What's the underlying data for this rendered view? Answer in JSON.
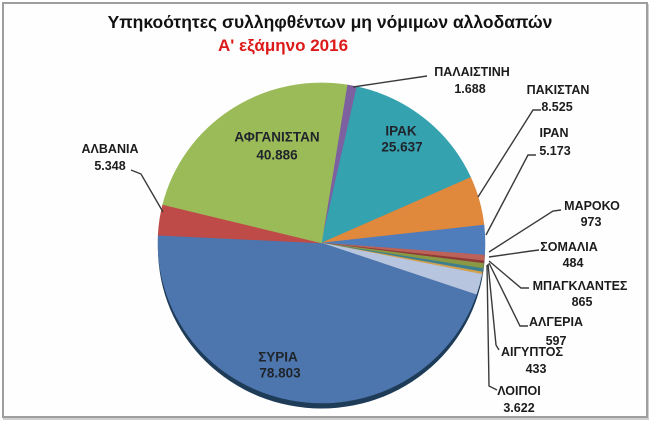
{
  "header": {
    "title": "Υπηκοότητες συλληφθέντων μη νόμιμων αλλοδαπών",
    "subtitle": "Α' εξάμηνο 2016",
    "subtitle_color": "#dd1a1a"
  },
  "chart_data": {
    "type": "pie",
    "title": "Υπηκοότητες συλληφθέντων μη νόμιμων αλλοδαπών",
    "subtitle": "Α' εξάμηνο 2016",
    "direction": "clockwise",
    "start_angle_deg": 9,
    "legend_position": "none",
    "labels": "outside-with-leader-lines; large slices labeled inside",
    "slices": [
      {
        "id": "palestine",
        "label": "ΠΑΛΑΙΣΤΙΝΗ",
        "value": 1688,
        "display": "1.688",
        "color": "#7d60a0"
      },
      {
        "id": "iraq",
        "label": "ΙΡΑΚ",
        "value": 25637,
        "display": "25.637",
        "color": "#35a2b0"
      },
      {
        "id": "pakistan",
        "label": "ΠΑΚΙΣΤΑΝ",
        "value": 8525,
        "display": "8.525",
        "color": "#e0883c"
      },
      {
        "id": "iran",
        "label": "ΙΡΑΝ",
        "value": 5173,
        "display": "5.173",
        "color": "#4f7cbb"
      },
      {
        "id": "morocco",
        "label": "ΜΑΡΟΚΟ",
        "value": 973,
        "display": "973",
        "color": "#bc6258"
      },
      {
        "id": "somalia",
        "label": "ΣΟΜΑΛΙΑ",
        "value": 484,
        "display": "484",
        "color": "#8e3b37"
      },
      {
        "id": "bangladesh",
        "label": "ΜΠΑΓΚΛΑΝΤΕΣ",
        "value": 865,
        "display": "865",
        "color": "#8a9a44"
      },
      {
        "id": "algeria",
        "label": "ΑΛΓΕΡΙΑ",
        "value": 597,
        "display": "597",
        "color": "#3e7f8f"
      },
      {
        "id": "egypt",
        "label": "ΑΙΓΥΠΤΟΣ",
        "value": 433,
        "display": "433",
        "color": "#d3a04f"
      },
      {
        "id": "others",
        "label": "ΛΟΙΠΟΙ",
        "value": 3622,
        "display": "3.622",
        "color": "#b7c5de"
      },
      {
        "id": "syria",
        "label": "ΣΥΡΙΑ",
        "value": 78803,
        "display": "78.803",
        "color": "#4c76ad"
      },
      {
        "id": "albania",
        "label": "ΑΛΒΑΝΙΑ",
        "value": 5348,
        "display": "5.348",
        "color": "#be4b48"
      },
      {
        "id": "afghanistan",
        "label": "ΑΦΓΑΝΙΣΤΑΝ",
        "value": 40886,
        "display": "40.886",
        "color": "#9bbb59"
      }
    ]
  }
}
